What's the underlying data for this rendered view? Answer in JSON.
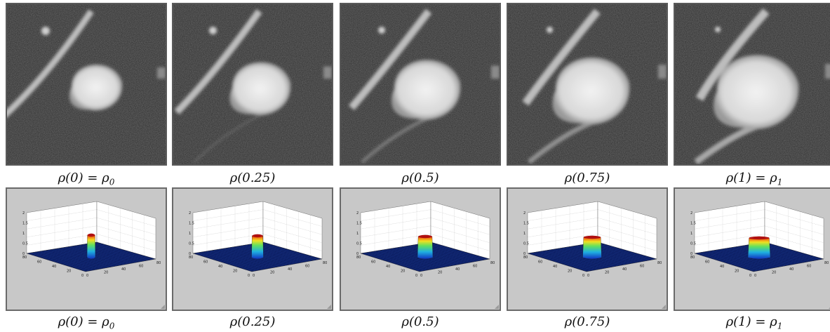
{
  "figure": {
    "top_row": [
      {
        "caption_main": "ρ(0) = ρ",
        "caption_sub": "0",
        "interp": 0.0
      },
      {
        "caption_main": "ρ(0.25)",
        "caption_sub": "",
        "interp": 0.25
      },
      {
        "caption_main": "ρ(0.5)",
        "caption_sub": "",
        "interp": 0.5
      },
      {
        "caption_main": "ρ(0.75)",
        "caption_sub": "",
        "interp": 0.75
      },
      {
        "caption_main": "ρ(1) = ρ",
        "caption_sub": "1",
        "interp": 1.0
      }
    ],
    "bottom_row": [
      {
        "caption_main": "ρ(0) = ρ",
        "caption_sub": "0",
        "interp": 0.0
      },
      {
        "caption_main": "ρ(0.25)",
        "caption_sub": "",
        "interp": 0.25
      },
      {
        "caption_main": "ρ(0.5)",
        "caption_sub": "",
        "interp": 0.5
      },
      {
        "caption_main": "ρ(0.75)",
        "caption_sub": "",
        "interp": 0.75
      },
      {
        "caption_main": "ρ(1) = ρ",
        "caption_sub": "1",
        "interp": 1.0
      }
    ],
    "plot_axes": {
      "z_ticks": [
        "2",
        "1.5",
        "1",
        "0.5",
        "0"
      ],
      "x_ticks": [
        "80",
        "60",
        "40",
        "20",
        "0"
      ],
      "y_ticks": [
        "0",
        "20",
        "40",
        "60",
        "80"
      ]
    }
  }
}
